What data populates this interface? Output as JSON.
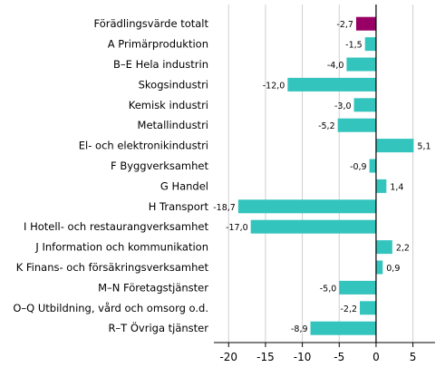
{
  "chart_data": {
    "type": "bar",
    "orientation": "horizontal",
    "categories": [
      "Förädlingsvärde totalt",
      "A Primärproduktion",
      "B–E Hela industrin",
      "Skogsindustri",
      "Kemisk industri",
      "Metallindustri",
      "El- och elektronikindustri",
      "F Byggverksamhet",
      "G Handel",
      "H Transport",
      "I Hotell- och restaurangverksamhet",
      "J Information och kommunikation",
      "K Finans- och försäkringsverksamhet",
      "M–N Företagstjänster",
      "O–Q Utbildning, vård och omsorg o.d.",
      "R–T Övriga tjänster"
    ],
    "values": [
      -2.7,
      -1.5,
      -4.0,
      -12.0,
      -3.0,
      -5.2,
      5.1,
      -0.9,
      1.4,
      -18.7,
      -17.0,
      2.2,
      0.9,
      -5.0,
      -2.2,
      -8.9
    ],
    "value_labels": [
      "-2,7",
      "-1,5",
      "-4,0",
      "-12,0",
      "-3,0",
      "-5,2",
      "5,1",
      "-0,9",
      "1,4",
      "-18,7",
      "-17,0",
      "2,2",
      "0,9",
      "-5,0",
      "-2,2",
      "-8,9"
    ],
    "xlim": [
      -22,
      8
    ],
    "xticks": [
      -20,
      -15,
      -10,
      -5,
      0,
      5
    ],
    "xtick_labels": [
      "-20",
      "-15",
      "-10",
      "-5",
      "0",
      "5"
    ],
    "grid": "vertical",
    "title": "",
    "xlabel": "",
    "ylabel": "",
    "colors": {
      "total": "#990066",
      "default": "#33c4bd",
      "grid": "#d0d0d0",
      "axis": "#000000"
    }
  }
}
